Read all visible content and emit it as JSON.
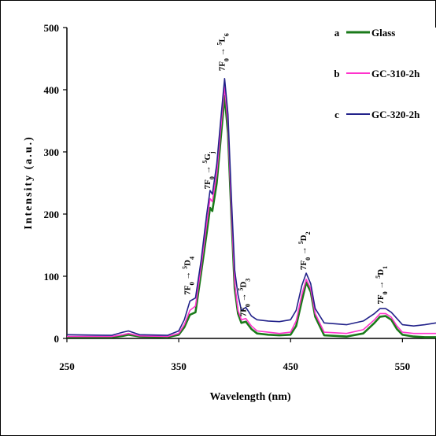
{
  "chart_data": {
    "type": "line",
    "title": "",
    "xlabel": "Wavelength (nm)",
    "ylabel": "Intensity (a.u.)",
    "xlim": [
      250,
      580
    ],
    "ylim": [
      0,
      500
    ],
    "x_ticks": [
      250,
      350,
      450,
      550
    ],
    "y_ticks": [
      0,
      100,
      200,
      300,
      400,
      500
    ],
    "legend_position": "top-right",
    "series": [
      {
        "name": "Glass",
        "letter": "a",
        "color": "#1a7a1a",
        "x": [
          250,
          290,
          300,
          305,
          315,
          340,
          350,
          355,
          360,
          365,
          370,
          375,
          378,
          380,
          384,
          388,
          391,
          394,
          397,
          400,
          403,
          406,
          410,
          415,
          420,
          430,
          440,
          450,
          455,
          460,
          464,
          468,
          472,
          480,
          500,
          515,
          525,
          530,
          535,
          540,
          545,
          550,
          560,
          570,
          580
        ],
        "y": [
          2,
          2,
          4,
          6,
          3,
          2,
          6,
          18,
          38,
          42,
          105,
          170,
          210,
          205,
          250,
          330,
          390,
          330,
          200,
          80,
          40,
          25,
          27,
          15,
          8,
          6,
          5,
          6,
          20,
          60,
          90,
          75,
          35,
          5,
          3,
          8,
          25,
          35,
          36,
          30,
          15,
          6,
          3,
          2,
          2
        ]
      },
      {
        "name": "GC-310-2h",
        "letter": "b",
        "color": "#ff33cc",
        "x": [
          250,
          290,
          300,
          305,
          315,
          340,
          350,
          355,
          360,
          365,
          370,
          375,
          378,
          380,
          384,
          388,
          391,
          394,
          397,
          400,
          403,
          406,
          410,
          415,
          420,
          430,
          440,
          450,
          455,
          460,
          464,
          468,
          472,
          480,
          500,
          515,
          525,
          530,
          535,
          540,
          545,
          550,
          560,
          570,
          580
        ],
        "y": [
          3,
          3,
          6,
          8,
          4,
          3,
          8,
          22,
          45,
          52,
          115,
          185,
          225,
          220,
          265,
          345,
          405,
          345,
          210,
          90,
          45,
          30,
          32,
          20,
          12,
          10,
          8,
          10,
          28,
          70,
          95,
          80,
          40,
          10,
          8,
          14,
          30,
          40,
          40,
          34,
          20,
          10,
          8,
          8,
          8
        ]
      },
      {
        "name": "GC-320-2h",
        "letter": "c",
        "color": "#22228a",
        "x": [
          250,
          290,
          300,
          305,
          315,
          340,
          350,
          355,
          360,
          365,
          370,
          375,
          378,
          380,
          384,
          388,
          391,
          394,
          397,
          400,
          403,
          406,
          410,
          415,
          420,
          430,
          440,
          450,
          455,
          460,
          464,
          468,
          472,
          480,
          500,
          515,
          525,
          530,
          535,
          540,
          545,
          550,
          560,
          570,
          580
        ],
        "y": [
          6,
          5,
          10,
          12,
          6,
          5,
          12,
          30,
          60,
          65,
          125,
          200,
          238,
          232,
          280,
          360,
          418,
          360,
          230,
          110,
          70,
          45,
          50,
          36,
          30,
          28,
          27,
          30,
          45,
          85,
          105,
          88,
          48,
          25,
          22,
          28,
          40,
          48,
          48,
          42,
          32,
          22,
          20,
          22,
          25
        ]
      }
    ],
    "annotations": [
      {
        "x": 360,
        "y": 70,
        "base": "7F",
        "sub0": "0",
        "arrow": " → ",
        "sup": "5",
        "term": "D",
        "sub1": "4"
      },
      {
        "x": 378,
        "y": 240,
        "base": "7F",
        "sub0": "0",
        "arrow": " → ",
        "sup": "5",
        "term": "G",
        "sub1": "j"
      },
      {
        "x": 391,
        "y": 430,
        "base": "7F",
        "sub0": "0",
        "arrow": " → ",
        "sup": "5",
        "term": "L",
        "sub1": "6"
      },
      {
        "x": 410,
        "y": 35,
        "base": "7F",
        "sub0": "0",
        "arrow": " → ",
        "sup": "5",
        "term": "D",
        "sub1": "3"
      },
      {
        "x": 464,
        "y": 110,
        "base": "7F",
        "sub0": "0",
        "arrow": " → ",
        "sup": "5",
        "term": "D",
        "sub1": "2"
      },
      {
        "x": 533,
        "y": 55,
        "base": "7F",
        "sub0": "0",
        "arrow": " → ",
        "sup": "5",
        "term": "D",
        "sub1": "1"
      }
    ]
  }
}
